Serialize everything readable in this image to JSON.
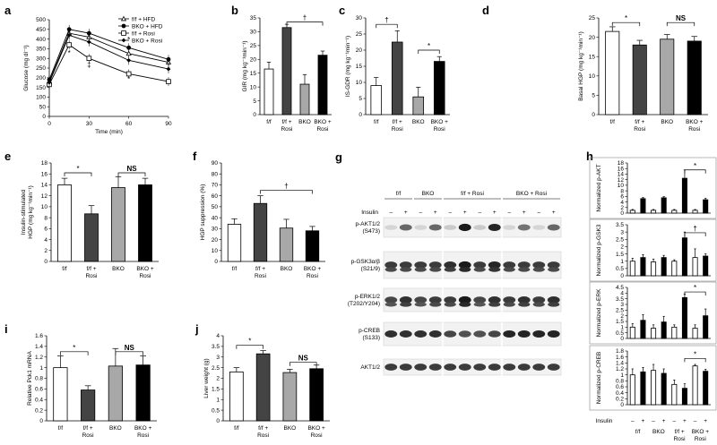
{
  "chart_data": [
    {
      "panel": "a",
      "type": "line",
      "xlabel": "Time (min)",
      "ylabel": "Glucose (mg dl⁻¹)",
      "x": [
        0,
        15,
        30,
        60,
        90
      ],
      "xlim": [
        0,
        90
      ],
      "ylim": [
        0,
        500
      ],
      "xticks": [
        0,
        30,
        60,
        90
      ],
      "yticks": [
        0,
        50,
        100,
        150,
        200,
        250,
        300,
        350,
        400,
        450,
        500
      ],
      "legend": "top-right",
      "series": [
        {
          "name": "f/f + HFD",
          "marker": "triangle-open",
          "values": [
            180,
            430,
            410,
            325,
            280
          ]
        },
        {
          "name": "BKO + HFD",
          "marker": "circle-filled",
          "values": [
            190,
            450,
            430,
            355,
            295
          ]
        },
        {
          "name": "f/f + Rosi",
          "marker": "square-open",
          "values": [
            165,
            370,
            300,
            220,
            180
          ]
        },
        {
          "name": "BKO + Rosi",
          "marker": "diamond-filled",
          "values": [
            175,
            420,
            385,
            290,
            245
          ]
        }
      ],
      "annotations": [
        "*",
        "‡",
        "*",
        "*"
      ]
    },
    {
      "panel": "b",
      "type": "bar",
      "ylabel": "GIR (mg kg⁻¹min⁻¹)",
      "categories": [
        "f/f",
        "f/f + Rosi",
        "BKO",
        "BKO + Rosi"
      ],
      "values": [
        16.5,
        31.5,
        11,
        21.5
      ],
      "errors": [
        2.5,
        1.2,
        3.5,
        1.5
      ],
      "ylim": [
        0,
        35
      ],
      "yticks": [
        0,
        5,
        10,
        15,
        20,
        25,
        30,
        35
      ],
      "annotations": [
        "†"
      ]
    },
    {
      "panel": "c",
      "type": "bar",
      "ylabel": "IS-GDR (mg kg⁻¹min⁻¹)",
      "categories": [
        "f/f",
        "f/f + Rosi",
        "BKO",
        "BKO + Rosi"
      ],
      "values": [
        9,
        22.5,
        5.5,
        16.5
      ],
      "errors": [
        2.5,
        3.5,
        3,
        1.5
      ],
      "ylim": [
        0,
        30
      ],
      "yticks": [
        0,
        5,
        10,
        15,
        20,
        25,
        30
      ],
      "annotations": [
        "†",
        "*"
      ]
    },
    {
      "panel": "d",
      "type": "bar",
      "ylabel": "Basal HGP (mg kg⁻¹min⁻¹)",
      "categories": [
        "f/f",
        "f/f + Rosi",
        "BKO",
        "BKO + Rosi"
      ],
      "values": [
        21.5,
        18,
        19.5,
        19
      ],
      "errors": [
        1.2,
        1.2,
        1.2,
        1.2
      ],
      "ylim": [
        0,
        25
      ],
      "yticks": [
        0,
        5,
        10,
        15,
        20,
        25
      ],
      "annotations": [
        "*",
        "NS"
      ]
    },
    {
      "panel": "e",
      "type": "bar",
      "ylabel": "Insulin-stimulated HGP (mg kg⁻¹min⁻¹)",
      "categories": [
        "f/f",
        "f/f + Rosi",
        "BKO",
        "BKO + Rosi"
      ],
      "values": [
        14,
        8.7,
        13.5,
        14
      ],
      "errors": [
        1.2,
        1.5,
        2,
        1.2
      ],
      "ylim": [
        0,
        18
      ],
      "yticks": [
        0,
        2,
        4,
        6,
        8,
        10,
        12,
        14,
        16,
        18
      ],
      "annotations": [
        "*",
        "NS"
      ]
    },
    {
      "panel": "f",
      "type": "bar",
      "ylabel": "HGP suppression (%)",
      "categories": [
        "f/f",
        "f/f + Rosi",
        "BKO",
        "BKO + Rosi"
      ],
      "values": [
        34,
        53,
        30.5,
        28
      ],
      "errors": [
        5,
        7,
        8,
        4
      ],
      "ylim": [
        0,
        90
      ],
      "yticks": [
        0,
        10,
        20,
        30,
        40,
        50,
        60,
        70,
        80,
        90
      ],
      "annotations": [
        "†"
      ]
    },
    {
      "panel": "i",
      "type": "bar",
      "ylabel": "Relative Pck1 mRNA",
      "categories": [
        "f/f",
        "f/f + Rosi",
        "BKO",
        "BKO + Rosi"
      ],
      "values": [
        1.0,
        0.58,
        1.03,
        1.05
      ],
      "errors": [
        0.22,
        0.08,
        0.33,
        0.17
      ],
      "ylim": [
        0,
        1.6
      ],
      "yticks": [
        0,
        0.2,
        0.4,
        0.6,
        0.8,
        1,
        1.2,
        1.4,
        1.6
      ],
      "annotations": [
        "*",
        "NS"
      ]
    },
    {
      "panel": "j",
      "type": "bar",
      "ylabel": "Liver weight (g)",
      "categories": [
        "f/f",
        "f/f + Rosi",
        "BKO",
        "BKO + Rosi"
      ],
      "values": [
        2.3,
        3.15,
        2.27,
        2.45
      ],
      "errors": [
        0.2,
        0.15,
        0.15,
        0.17
      ],
      "ylim": [
        0,
        4
      ],
      "yticks": [
        0,
        0.5,
        1,
        1.5,
        2,
        2.5,
        3,
        3.5,
        4
      ],
      "annotations": [
        "*",
        "NS"
      ]
    },
    {
      "panel": "h1",
      "type": "bar",
      "ylabel": "Normalized p-AKT",
      "values": [
        1.0,
        5.2,
        1.0,
        5.5,
        1.0,
        12.5,
        1.0,
        4.8
      ],
      "errors": [
        0.3,
        0.4,
        0.3,
        0.4,
        0.3,
        3,
        0.3,
        0.5
      ],
      "ylim": [
        0,
        18
      ],
      "yticks": [
        0,
        2,
        4,
        6,
        8,
        10,
        12,
        14,
        16,
        18
      ],
      "annotations": [
        "*"
      ]
    },
    {
      "panel": "h2",
      "type": "bar",
      "ylabel": "Normalized p-GSK3",
      "values": [
        1.0,
        1.25,
        0.95,
        1.25,
        1.0,
        2.6,
        1.25,
        1.35
      ],
      "errors": [
        0.2,
        0.2,
        0.2,
        0.15,
        0.1,
        0.4,
        0.6,
        0.15
      ],
      "ylim": [
        0,
        3.5
      ],
      "yticks": [
        0,
        0.5,
        1,
        1.5,
        2,
        2.5,
        3,
        3.5
      ],
      "annotations": [
        "†"
      ]
    },
    {
      "panel": "h3",
      "type": "bar",
      "ylabel": "Normalized p-ERK",
      "values": [
        1.0,
        1.6,
        0.9,
        1.45,
        1.0,
        3.6,
        0.9,
        2.0
      ],
      "errors": [
        0.3,
        0.5,
        0.3,
        0.5,
        0.2,
        0.3,
        0.3,
        0.6
      ],
      "ylim": [
        0,
        4.5
      ],
      "yticks": [
        0,
        0.5,
        1,
        1.5,
        2,
        2.5,
        3,
        3.5,
        4,
        4.5
      ],
      "annotations": [
        "*"
      ]
    },
    {
      "panel": "h4",
      "type": "bar",
      "ylabel": "Normalized p-CREB",
      "values": [
        1.0,
        1.1,
        1.15,
        1.05,
        0.68,
        0.55,
        1.3,
        1.12
      ],
      "errors": [
        0.2,
        0.15,
        0.2,
        0.15,
        0.15,
        0.15,
        0.05,
        0.07
      ],
      "ylim": [
        0,
        1.8
      ],
      "yticks": [
        0,
        0.2,
        0.4,
        0.6,
        0.8,
        1,
        1.2,
        1.4,
        1.6,
        1.8
      ],
      "annotations": [
        "*"
      ]
    }
  ],
  "panel_labels": [
    "a",
    "b",
    "c",
    "d",
    "e",
    "f",
    "g",
    "h",
    "i",
    "j"
  ],
  "blot": {
    "groups": [
      "f/f",
      "BKO",
      "f/f + Rosi",
      "BKO + Rosi"
    ],
    "insulin_label": "Insulin",
    "insulin_signs": [
      "–",
      "+",
      "–",
      "+",
      "–",
      "+",
      "–",
      "+",
      "–",
      "+",
      "–",
      "+"
    ],
    "bands": [
      "p-AKT1/2 (S473)",
      "p-GSK3α/β (S21/9)",
      "p-ERK1/2 (T202/Y204)",
      "p-CREB (S133)",
      "AKT1/2"
    ],
    "intensities": [
      [
        0.1,
        0.6,
        0.1,
        0.6,
        0.15,
        0.95,
        0.15,
        0.9,
        0.1,
        0.55,
        0.1,
        0.6
      ],
      [
        0.8,
        0.8,
        0.8,
        0.8,
        0.85,
        0.95,
        0.8,
        0.9,
        0.8,
        0.8,
        0.8,
        0.8
      ],
      [
        0.75,
        0.85,
        0.75,
        0.8,
        0.8,
        0.95,
        0.75,
        0.85,
        0.8,
        0.85,
        0.8,
        0.85
      ],
      [
        0.85,
        0.85,
        0.85,
        0.85,
        0.75,
        0.7,
        0.7,
        0.75,
        0.9,
        0.9,
        0.9,
        0.9
      ],
      [
        0.8,
        0.8,
        0.8,
        0.8,
        0.8,
        0.8,
        0.8,
        0.8,
        0.8,
        0.8,
        0.8,
        0.8
      ]
    ]
  },
  "h_xaxis": {
    "insulin_label": "Insulin",
    "signs": [
      "–",
      "+",
      "–",
      "+",
      "–",
      "+",
      "–",
      "+"
    ],
    "groups": [
      "f/f",
      "BKO",
      "f/f + Rosi",
      "BKO + Rosi"
    ]
  }
}
